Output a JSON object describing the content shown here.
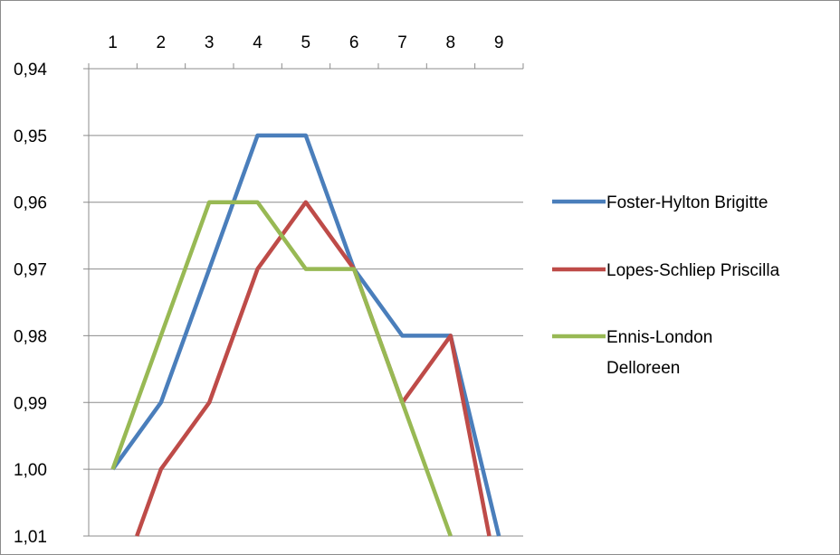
{
  "chart_data": {
    "type": "line",
    "title": "",
    "xlabel": "",
    "ylabel": "",
    "x": [
      1,
      2,
      3,
      4,
      5,
      6,
      7,
      8,
      9
    ],
    "x_tick_labels": [
      "1",
      "2",
      "3",
      "4",
      "5",
      "6",
      "7",
      "8",
      "9"
    ],
    "x_axis_position": "top",
    "y_tick_labels": [
      "0,94",
      "0,95",
      "0,96",
      "0,97",
      "0,98",
      "0,99",
      "1,00",
      "1,01"
    ],
    "ylim": [
      0.94,
      1.01
    ],
    "y_reversed": true,
    "grid": "horizontal",
    "legend_position": "right",
    "series": [
      {
        "name": "Foster-Hylton Brigitte",
        "color": "#4a7ebb",
        "x": [
          1,
          2,
          3,
          4,
          5,
          6,
          7,
          8,
          9
        ],
        "values": [
          1.0,
          0.99,
          0.97,
          0.95,
          0.95,
          0.97,
          0.98,
          0.98,
          1.01
        ]
      },
      {
        "name": "Lopes-Schliep Priscilla",
        "color": "#be4b48",
        "x": [
          1.5,
          2,
          3,
          4,
          5,
          6,
          7,
          8,
          8.8
        ],
        "values": [
          1.01,
          1.0,
          0.99,
          0.97,
          0.96,
          0.97,
          0.99,
          0.98,
          1.01
        ]
      },
      {
        "name": "Ennis-London Delloreen",
        "name_lines": [
          "Ennis-London",
          "Delloreen"
        ],
        "color": "#98b954",
        "x": [
          1,
          2,
          3,
          4,
          5,
          6,
          7,
          8
        ],
        "values": [
          1.0,
          0.98,
          0.96,
          0.96,
          0.97,
          0.97,
          0.99,
          1.01
        ]
      }
    ]
  }
}
